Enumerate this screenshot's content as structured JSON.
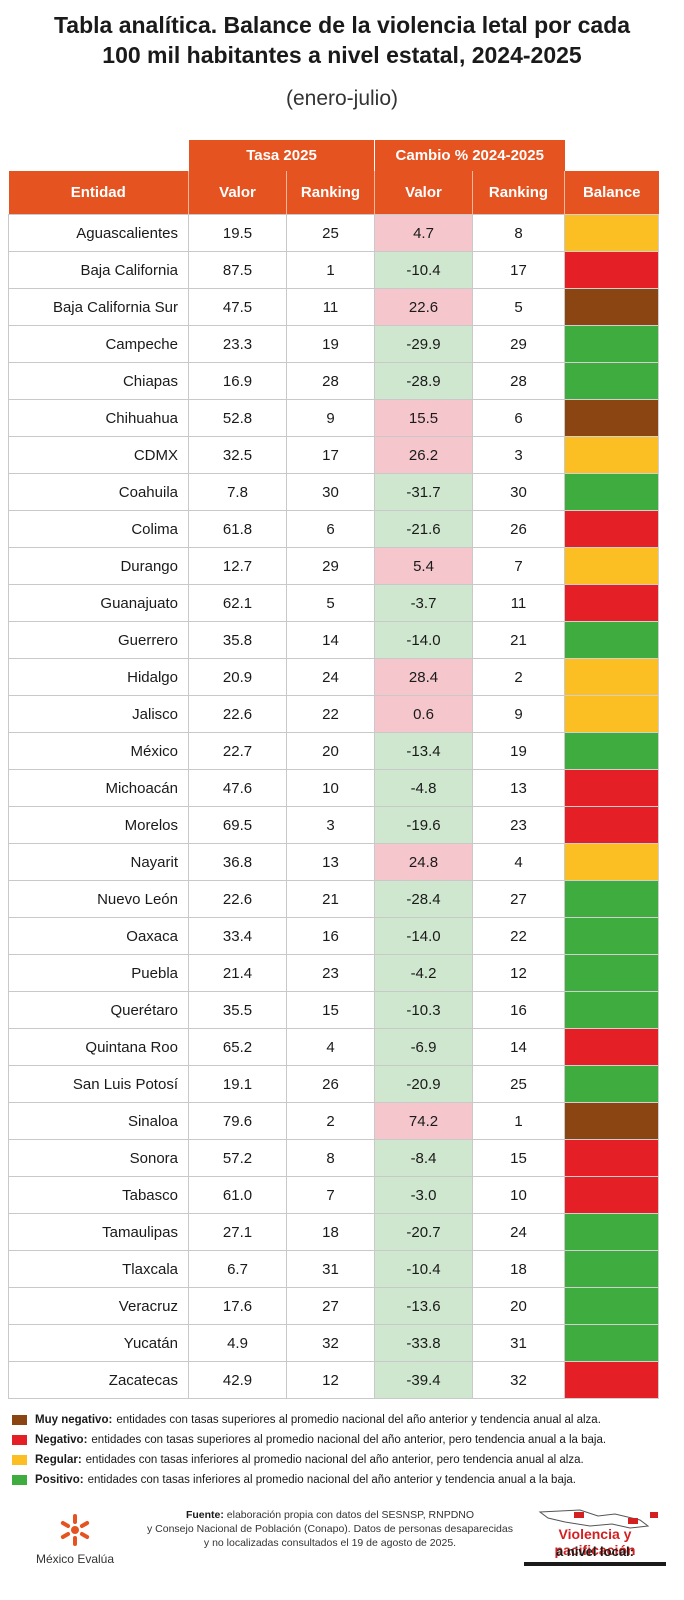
{
  "header": {
    "title_line1": "Tabla analítica. Balance de la violencia letal por cada",
    "title_line2": "100 mil habitantes a nivel estatal, 2024-2025",
    "subtitle": "(enero-julio)"
  },
  "table": {
    "group_headers": {
      "tasa": "Tasa 2025",
      "cambio": "Cambio % 2024-2025"
    },
    "columns": [
      "Entidad",
      "Valor",
      "Ranking",
      "Valor",
      "Ranking",
      "Balance"
    ]
  },
  "colors": {
    "header_orange": "#e55320",
    "increase_pink": "#f5c6cc",
    "decrease_green": "#cfe6cf",
    "muy_negativo": "#8b4513",
    "negativo": "#e41f26",
    "regular": "#fbbf24",
    "positivo": "#3fac3f"
  },
  "chart_data": {
    "type": "table",
    "title": "Tabla analítica. Balance de la violencia letal por cada 100 mil habitantes a nivel estatal, 2024-2025",
    "subtitle": "(enero-julio)",
    "rows": [
      {
        "entidad": "Aguascalientes",
        "valor": "19.5",
        "ranking": "25",
        "cambio": "4.7",
        "cambio_ranking": "8",
        "balance": "regular"
      },
      {
        "entidad": "Baja California",
        "valor": "87.5",
        "ranking": "1",
        "cambio": "-10.4",
        "cambio_ranking": "17",
        "balance": "negativo"
      },
      {
        "entidad": "Baja California Sur",
        "valor": "47.5",
        "ranking": "11",
        "cambio": "22.6",
        "cambio_ranking": "5",
        "balance": "muy_negativo"
      },
      {
        "entidad": "Campeche",
        "valor": "23.3",
        "ranking": "19",
        "cambio": "-29.9",
        "cambio_ranking": "29",
        "balance": "positivo"
      },
      {
        "entidad": "Chiapas",
        "valor": "16.9",
        "ranking": "28",
        "cambio": "-28.9",
        "cambio_ranking": "28",
        "balance": "positivo"
      },
      {
        "entidad": "Chihuahua",
        "valor": "52.8",
        "ranking": "9",
        "cambio": "15.5",
        "cambio_ranking": "6",
        "balance": "muy_negativo"
      },
      {
        "entidad": "CDMX",
        "valor": "32.5",
        "ranking": "17",
        "cambio": "26.2",
        "cambio_ranking": "3",
        "balance": "regular"
      },
      {
        "entidad": "Coahuila",
        "valor": "7.8",
        "ranking": "30",
        "cambio": "-31.7",
        "cambio_ranking": "30",
        "balance": "positivo"
      },
      {
        "entidad": "Colima",
        "valor": "61.8",
        "ranking": "6",
        "cambio": "-21.6",
        "cambio_ranking": "26",
        "balance": "negativo"
      },
      {
        "entidad": "Durango",
        "valor": "12.7",
        "ranking": "29",
        "cambio": "5.4",
        "cambio_ranking": "7",
        "balance": "regular"
      },
      {
        "entidad": "Guanajuato",
        "valor": "62.1",
        "ranking": "5",
        "cambio": "-3.7",
        "cambio_ranking": "11",
        "balance": "negativo"
      },
      {
        "entidad": "Guerrero",
        "valor": "35.8",
        "ranking": "14",
        "cambio": "-14.0",
        "cambio_ranking": "21",
        "balance": "positivo"
      },
      {
        "entidad": "Hidalgo",
        "valor": "20.9",
        "ranking": "24",
        "cambio": "28.4",
        "cambio_ranking": "2",
        "balance": "regular"
      },
      {
        "entidad": "Jalisco",
        "valor": "22.6",
        "ranking": "22",
        "cambio": "0.6",
        "cambio_ranking": "9",
        "balance": "regular"
      },
      {
        "entidad": "México",
        "valor": "22.7",
        "ranking": "20",
        "cambio": "-13.4",
        "cambio_ranking": "19",
        "balance": "positivo"
      },
      {
        "entidad": "Michoacán",
        "valor": "47.6",
        "ranking": "10",
        "cambio": "-4.8",
        "cambio_ranking": "13",
        "balance": "negativo"
      },
      {
        "entidad": "Morelos",
        "valor": "69.5",
        "ranking": "3",
        "cambio": "-19.6",
        "cambio_ranking": "23",
        "balance": "negativo"
      },
      {
        "entidad": "Nayarit",
        "valor": "36.8",
        "ranking": "13",
        "cambio": "24.8",
        "cambio_ranking": "4",
        "balance": "regular"
      },
      {
        "entidad": "Nuevo León",
        "valor": "22.6",
        "ranking": "21",
        "cambio": "-28.4",
        "cambio_ranking": "27",
        "balance": "positivo"
      },
      {
        "entidad": "Oaxaca",
        "valor": "33.4",
        "ranking": "16",
        "cambio": "-14.0",
        "cambio_ranking": "22",
        "balance": "positivo"
      },
      {
        "entidad": "Puebla",
        "valor": "21.4",
        "ranking": "23",
        "cambio": "-4.2",
        "cambio_ranking": "12",
        "balance": "positivo"
      },
      {
        "entidad": "Querétaro",
        "valor": "35.5",
        "ranking": "15",
        "cambio": "-10.3",
        "cambio_ranking": "16",
        "balance": "positivo"
      },
      {
        "entidad": "Quintana Roo",
        "valor": "65.2",
        "ranking": "4",
        "cambio": "-6.9",
        "cambio_ranking": "14",
        "balance": "negativo"
      },
      {
        "entidad": "San Luis Potosí",
        "valor": "19.1",
        "ranking": "26",
        "cambio": "-20.9",
        "cambio_ranking": "25",
        "balance": "positivo"
      },
      {
        "entidad": "Sinaloa",
        "valor": "79.6",
        "ranking": "2",
        "cambio": "74.2",
        "cambio_ranking": "1",
        "balance": "muy_negativo"
      },
      {
        "entidad": "Sonora",
        "valor": "57.2",
        "ranking": "8",
        "cambio": "-8.4",
        "cambio_ranking": "15",
        "balance": "negativo"
      },
      {
        "entidad": "Tabasco",
        "valor": "61.0",
        "ranking": "7",
        "cambio": "-3.0",
        "cambio_ranking": "10",
        "balance": "negativo"
      },
      {
        "entidad": "Tamaulipas",
        "valor": "27.1",
        "ranking": "18",
        "cambio": "-20.7",
        "cambio_ranking": "24",
        "balance": "positivo"
      },
      {
        "entidad": "Tlaxcala",
        "valor": "6.7",
        "ranking": "31",
        "cambio": "-10.4",
        "cambio_ranking": "18",
        "balance": "positivo"
      },
      {
        "entidad": "Veracruz",
        "valor": "17.6",
        "ranking": "27",
        "cambio": "-13.6",
        "cambio_ranking": "20",
        "balance": "positivo"
      },
      {
        "entidad": "Yucatán",
        "valor": "4.9",
        "ranking": "32",
        "cambio": "-33.8",
        "cambio_ranking": "31",
        "balance": "positivo"
      },
      {
        "entidad": "Zacatecas",
        "valor": "42.9",
        "ranking": "12",
        "cambio": "-39.4",
        "cambio_ranking": "32",
        "balance": "negativo"
      }
    ]
  },
  "legend": [
    {
      "key": "muy_negativo",
      "label": "Muy negativo:",
      "text": "entidades con tasas superiores al promedio nacional del año anterior y tendencia anual al alza.",
      "color": "#8b4513"
    },
    {
      "key": "negativo",
      "label": "Negativo:",
      "text": "entidades con tasas superiores al promedio nacional del año anterior, pero tendencia anual a la baja.",
      "color": "#e41f26"
    },
    {
      "key": "regular",
      "label": "Regular:",
      "text": "entidades con tasas inferiores al promedio nacional del año anterior, pero tendencia anual al alza.",
      "color": "#fbbf24"
    },
    {
      "key": "positivo",
      "label": "Positivo:",
      "text": "entidades con tasas inferiores al promedio nacional del año anterior y tendencia anual a la baja.",
      "color": "#3fac3f"
    }
  ],
  "footer": {
    "logo_left": "México Evalúa",
    "source_label": "Fuente:",
    "source_line1": "elaboración propia con datos del SESNSP, RNPDNO",
    "source_line2": "y Consejo Nacional de Población (Conapo). Datos de personas desaparecidas",
    "source_line3": "y no localizadas consultados el 19 de agosto de 2025.",
    "logo_right_line1": "Violencia y pacificación",
    "logo_right_line2": "a nivel local:"
  }
}
